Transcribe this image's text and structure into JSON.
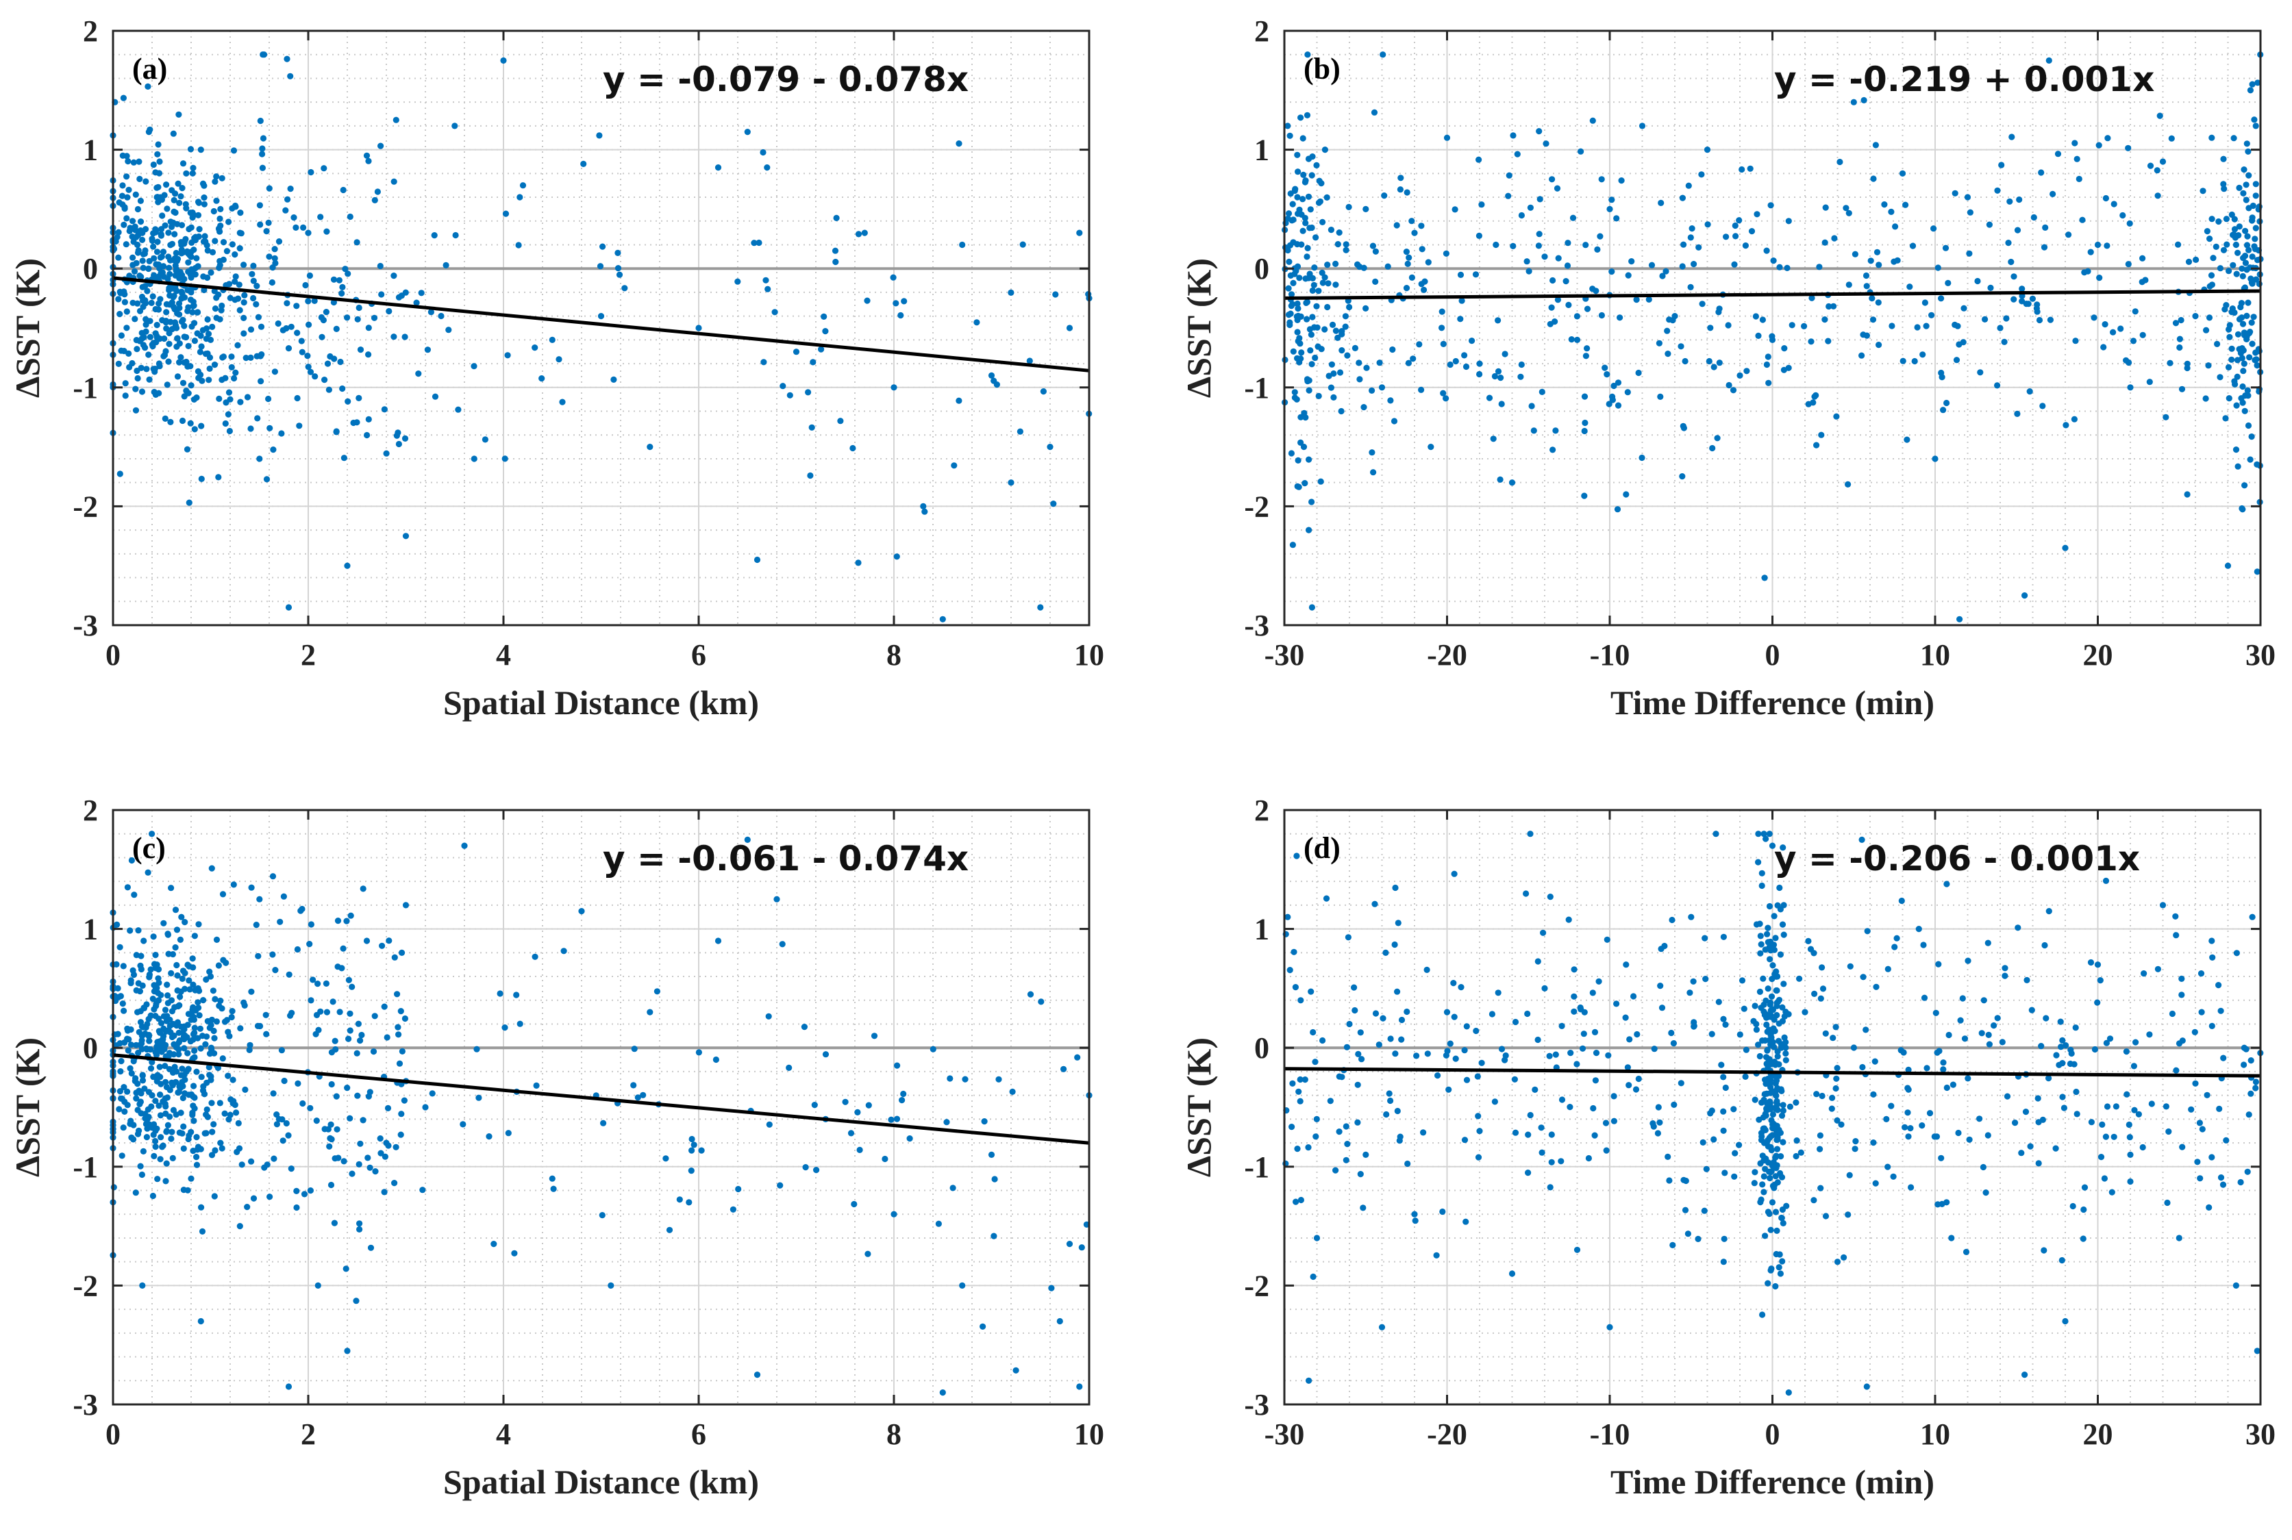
{
  "colors": {
    "points": "#0072BD",
    "fit_line": "#000000",
    "zero_line": "#9a9a9a",
    "grid_major": "#d4d4d4",
    "grid_minor": "#c8c8c8",
    "axes": "#262626"
  },
  "chart_data": [
    {
      "type": "scatter",
      "panel_label": "(a)",
      "equation": "y = -0.079 - 0.078x",
      "xlabel": "Spatial Distance (km)",
      "ylabel": "ΔSST (K)",
      "xlim": [
        0,
        10
      ],
      "ylim": [
        -3,
        2
      ],
      "xticks": [
        0,
        2,
        4,
        6,
        8,
        10
      ],
      "yticks": [
        -3,
        -2,
        -1,
        0,
        1,
        2
      ],
      "grid": "major and minor (dotted)",
      "fit": {
        "intercept": -0.079,
        "slope": -0.078
      },
      "zero_line": true,
      "points_sample": [
        [
          0.02,
          1.4
        ],
        [
          0.1,
          0.95
        ],
        [
          0.2,
          0.4
        ],
        [
          0.25,
          0.2
        ],
        [
          0.3,
          0.3
        ],
        [
          0.35,
          -0.1
        ],
        [
          0.4,
          0.25
        ],
        [
          0.45,
          0.6
        ],
        [
          0.5,
          0.1
        ],
        [
          0.55,
          -0.3
        ],
        [
          0.6,
          0.35
        ],
        [
          0.65,
          -0.5
        ],
        [
          0.7,
          0.2
        ],
        [
          0.75,
          0.8
        ],
        [
          0.8,
          -0.2
        ],
        [
          0.9,
          1.0
        ],
        [
          1.0,
          -0.6
        ],
        [
          1.1,
          0.5
        ],
        [
          1.2,
          -1.1
        ],
        [
          1.3,
          0.3
        ],
        [
          1.5,
          -1.6
        ],
        [
          1.6,
          0.1
        ],
        [
          1.8,
          -2.85
        ],
        [
          2.0,
          0.3
        ],
        [
          2.2,
          -0.8
        ],
        [
          2.4,
          -2.5
        ],
        [
          2.6,
          0.95
        ],
        [
          2.9,
          1.25
        ],
        [
          3.0,
          -2.25
        ],
        [
          3.5,
          1.2
        ],
        [
          3.7,
          -1.6
        ],
        [
          4.0,
          1.75
        ],
        [
          4.2,
          0.7
        ],
        [
          4.5,
          -0.6
        ],
        [
          5.0,
          -0.4
        ],
        [
          5.5,
          -1.5
        ],
        [
          6.0,
          -0.5
        ],
        [
          6.2,
          0.85
        ],
        [
          6.5,
          1.15
        ],
        [
          6.6,
          -2.45
        ],
        [
          6.7,
          0.85
        ],
        [
          7.0,
          -0.7
        ],
        [
          7.4,
          0.15
        ],
        [
          7.7,
          0.3
        ],
        [
          8.0,
          -1.0
        ],
        [
          8.3,
          -2.0
        ],
        [
          8.5,
          -2.95
        ],
        [
          8.7,
          0.2
        ],
        [
          9.0,
          -0.9
        ],
        [
          9.2,
          -1.8
        ],
        [
          9.5,
          -2.85
        ],
        [
          9.6,
          -1.5
        ],
        [
          9.8,
          -0.5
        ],
        [
          9.9,
          0.3
        ],
        [
          10.0,
          -0.25
        ]
      ]
    },
    {
      "type": "scatter",
      "panel_label": "(b)",
      "equation": "y = -0.219 + 0.001x",
      "xlabel": "Time Difference (min)",
      "ylabel": "ΔSST (K)",
      "xlim": [
        -30,
        30
      ],
      "ylim": [
        -3,
        2
      ],
      "xticks": [
        -30,
        -20,
        -10,
        0,
        10,
        20,
        30
      ],
      "yticks": [
        -3,
        -2,
        -1,
        0,
        1,
        2
      ],
      "grid": "major and minor (dotted)",
      "fit": {
        "intercept": -0.219,
        "slope": 0.001
      },
      "zero_line": true,
      "points_sample": [
        [
          -29.8,
          1.2
        ],
        [
          -29.5,
          -0.3
        ],
        [
          -29.2,
          0.6
        ],
        [
          -28.8,
          -1.5
        ],
        [
          -28.5,
          -2.2
        ],
        [
          -28.3,
          -2.85
        ],
        [
          -27.5,
          1.0
        ],
        [
          -26.5,
          -1.2
        ],
        [
          -25.0,
          0.5
        ],
        [
          -24.0,
          -1.0
        ],
        [
          -22.0,
          0.3
        ],
        [
          -21.0,
          -1.5
        ],
        [
          -20.0,
          1.1
        ],
        [
          -18.0,
          -0.8
        ],
        [
          -17.0,
          0.2
        ],
        [
          -16.0,
          -1.8
        ],
        [
          -14.0,
          0.1
        ],
        [
          -12.0,
          -0.6
        ],
        [
          -10.0,
          0.5
        ],
        [
          -9.0,
          -1.9
        ],
        [
          -8.0,
          1.2
        ],
        [
          -6.0,
          -0.4
        ],
        [
          -4.0,
          1.0
        ],
        [
          -2.0,
          -0.9
        ],
        [
          0.0,
          -0.6
        ],
        [
          1.0,
          0.4
        ],
        [
          3.0,
          -1.4
        ],
        [
          5.0,
          1.4
        ],
        [
          6.0,
          -0.2
        ],
        [
          8.0,
          0.8
        ],
        [
          10.0,
          -1.6
        ],
        [
          11.5,
          -2.95
        ],
        [
          12.0,
          0.6
        ],
        [
          14.0,
          -0.5
        ],
        [
          15.5,
          -2.75
        ],
        [
          17.0,
          1.75
        ],
        [
          18.0,
          -2.35
        ],
        [
          20.0,
          0.2
        ],
        [
          22.0,
          -1.0
        ],
        [
          24.0,
          0.9
        ],
        [
          25.5,
          -1.9
        ],
        [
          26.0,
          -0.4
        ],
        [
          27.0,
          1.1
        ],
        [
          28.0,
          -2.5
        ],
        [
          28.5,
          0.2
        ],
        [
          29.0,
          -0.8
        ],
        [
          29.5,
          1.55
        ],
        [
          29.8,
          -2.55
        ]
      ]
    },
    {
      "type": "scatter",
      "panel_label": "(c)",
      "equation": "y = -0.061 - 0.074x",
      "xlabel": "Spatial Distance (km)",
      "ylabel": "ΔSST (K)",
      "xlim": [
        0,
        10
      ],
      "ylim": [
        -3,
        2
      ],
      "xticks": [
        0,
        2,
        4,
        6,
        8,
        10
      ],
      "yticks": [
        -3,
        -2,
        -1,
        0,
        1,
        2
      ],
      "grid": "major and minor (dotted)",
      "fit": {
        "intercept": -0.061,
        "slope": -0.074
      },
      "zero_line": true,
      "points_sample": [
        [
          0.05,
          0.5
        ],
        [
          0.15,
          1.35
        ],
        [
          0.25,
          0.3
        ],
        [
          0.3,
          -2.0
        ],
        [
          0.35,
          0.2
        ],
        [
          0.4,
          -0.4
        ],
        [
          0.45,
          0.7
        ],
        [
          0.5,
          0.0
        ],
        [
          0.55,
          -0.7
        ],
        [
          0.6,
          0.4
        ],
        [
          0.65,
          -0.2
        ],
        [
          0.7,
          1.1
        ],
        [
          0.8,
          -1.1
        ],
        [
          0.9,
          -2.3
        ],
        [
          1.0,
          0.6
        ],
        [
          1.1,
          -0.8
        ],
        [
          1.3,
          -1.5
        ],
        [
          1.5,
          1.25
        ],
        [
          1.7,
          -0.6
        ],
        [
          1.8,
          -2.85
        ],
        [
          2.1,
          -2.0
        ],
        [
          2.4,
          -2.55
        ],
        [
          2.6,
          0.9
        ],
        [
          2.8,
          -0.8
        ],
        [
          3.0,
          1.2
        ],
        [
          3.2,
          -0.5
        ],
        [
          3.6,
          1.7
        ],
        [
          3.9,
          -1.65
        ],
        [
          4.5,
          -1.1
        ],
        [
          4.8,
          1.15
        ],
        [
          5.1,
          -2.0
        ],
        [
          5.5,
          0.3
        ],
        [
          5.9,
          -1.3
        ],
        [
          6.2,
          0.9
        ],
        [
          6.5,
          1.75
        ],
        [
          6.6,
          -2.75
        ],
        [
          6.8,
          1.25
        ],
        [
          7.3,
          -0.6
        ],
        [
          7.8,
          0.1
        ],
        [
          8.0,
          -1.4
        ],
        [
          8.5,
          -2.9
        ],
        [
          8.7,
          -2.0
        ],
        [
          9.0,
          -0.9
        ],
        [
          9.4,
          0.45
        ],
        [
          9.7,
          -2.3
        ],
        [
          9.8,
          -1.65
        ],
        [
          9.9,
          -2.85
        ],
        [
          10.0,
          -0.4
        ]
      ]
    },
    {
      "type": "scatter",
      "panel_label": "(d)",
      "equation": "y = -0.206 - 0.001x",
      "xlabel": "Time Difference (min)",
      "ylabel": "ΔSST (K)",
      "xlim": [
        -30,
        30
      ],
      "ylim": [
        -3,
        2
      ],
      "xticks": [
        -30,
        -20,
        -10,
        0,
        10,
        20,
        30
      ],
      "yticks": [
        -3,
        -2,
        -1,
        0,
        1,
        2
      ],
      "grid": "major and minor (dotted)",
      "fit": {
        "intercept": -0.206,
        "slope": -0.001
      },
      "zero_line": true,
      "points_sample": [
        [
          -29.8,
          1.1
        ],
        [
          -29.5,
          -0.3
        ],
        [
          -29.0,
          0.4
        ],
        [
          -28.5,
          -2.8
        ],
        [
          -28.0,
          -1.6
        ],
        [
          -26.0,
          0.2
        ],
        [
          -25.0,
          -0.9
        ],
        [
          -24.0,
          -2.35
        ],
        [
          -23.0,
          1.05
        ],
        [
          -22.0,
          -1.4
        ],
        [
          -20.0,
          0.3
        ],
        [
          -18.0,
          -0.7
        ],
        [
          -16.0,
          -1.9
        ],
        [
          -14.0,
          0.5
        ],
        [
          -12.0,
          -1.7
        ],
        [
          -10.0,
          -2.35
        ],
        [
          -9.0,
          0.7
        ],
        [
          -7.0,
          -0.5
        ],
        [
          -5.0,
          1.1
        ],
        [
          -3.0,
          -1.8
        ],
        [
          -1.0,
          0.2
        ],
        [
          -0.5,
          -0.8
        ],
        [
          0.0,
          1.7
        ],
        [
          0.0,
          -1.3
        ],
        [
          0.2,
          -0.3
        ],
        [
          0.3,
          0.6
        ],
        [
          0.5,
          -1.9
        ],
        [
          0.7,
          1.2
        ],
        [
          1.0,
          -2.9
        ],
        [
          2.0,
          0.3
        ],
        [
          4.0,
          -1.8
        ],
        [
          5.5,
          1.75
        ],
        [
          5.8,
          -2.85
        ],
        [
          7.0,
          -0.6
        ],
        [
          9.0,
          1.0
        ],
        [
          11.0,
          -1.6
        ],
        [
          13.0,
          0.4
        ],
        [
          15.5,
          -2.75
        ],
        [
          17.0,
          1.15
        ],
        [
          18.0,
          -2.3
        ],
        [
          20.0,
          0.7
        ],
        [
          22.0,
          -0.9
        ],
        [
          24.0,
          1.2
        ],
        [
          25.0,
          -1.6
        ],
        [
          26.0,
          -0.3
        ],
        [
          27.0,
          0.9
        ],
        [
          28.5,
          -2.0
        ],
        [
          29.0,
          0.0
        ],
        [
          29.5,
          1.1
        ],
        [
          29.8,
          -2.55
        ]
      ]
    }
  ]
}
